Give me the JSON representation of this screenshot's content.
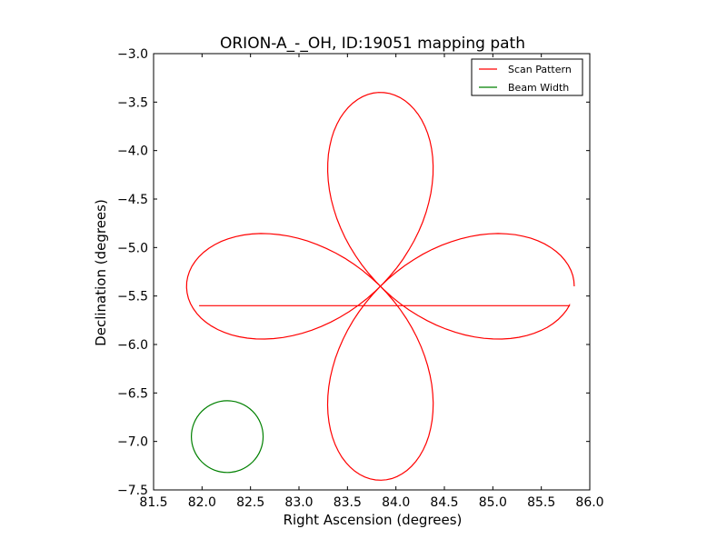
{
  "chart_data": {
    "type": "line",
    "title": "ORION-A_-_OH, ID:19051 mapping path",
    "xlabel": "Right Ascension (degrees)",
    "ylabel": "Declination (degrees)",
    "xlim": [
      81.5,
      86.0
    ],
    "ylim": [
      -7.5,
      -3.0
    ],
    "x_ticks": [
      81.5,
      82.0,
      82.5,
      83.0,
      83.5,
      84.0,
      84.5,
      85.0,
      85.5,
      86.0
    ],
    "y_ticks": [
      -3.0,
      -3.5,
      -4.0,
      -4.5,
      -5.0,
      -5.5,
      -6.0,
      -6.5,
      -7.0,
      -7.5
    ],
    "x_tick_labels": [
      "81.5",
      "82.0",
      "82.5",
      "83.0",
      "83.5",
      "84.0",
      "84.5",
      "85.0",
      "85.5",
      "86.0"
    ],
    "y_tick_labels": [
      "−3.0",
      "−3.5",
      "−4.0",
      "−4.5",
      "−5.0",
      "−5.5",
      "−6.0",
      "−6.5",
      "−7.0",
      "−7.5"
    ],
    "grid": false,
    "legend_position": "top-right",
    "series": [
      {
        "name": "Scan Pattern",
        "color": "#ff0000",
        "shape": "four-leaf rose",
        "center": [
          83.84,
          -5.4
        ],
        "petal_extent_ra": 2.0,
        "petal_extent_dec": 2.0,
        "x_start": 85.84,
        "y_start": -5.4,
        "x_end": 81.97,
        "y_end": -5.6
      },
      {
        "name": "Beam Width",
        "color": "#008000",
        "shape": "circle",
        "center": [
          82.26,
          -6.95
        ],
        "radius_ra": 0.37,
        "radius_dec": 0.37
      }
    ]
  }
}
